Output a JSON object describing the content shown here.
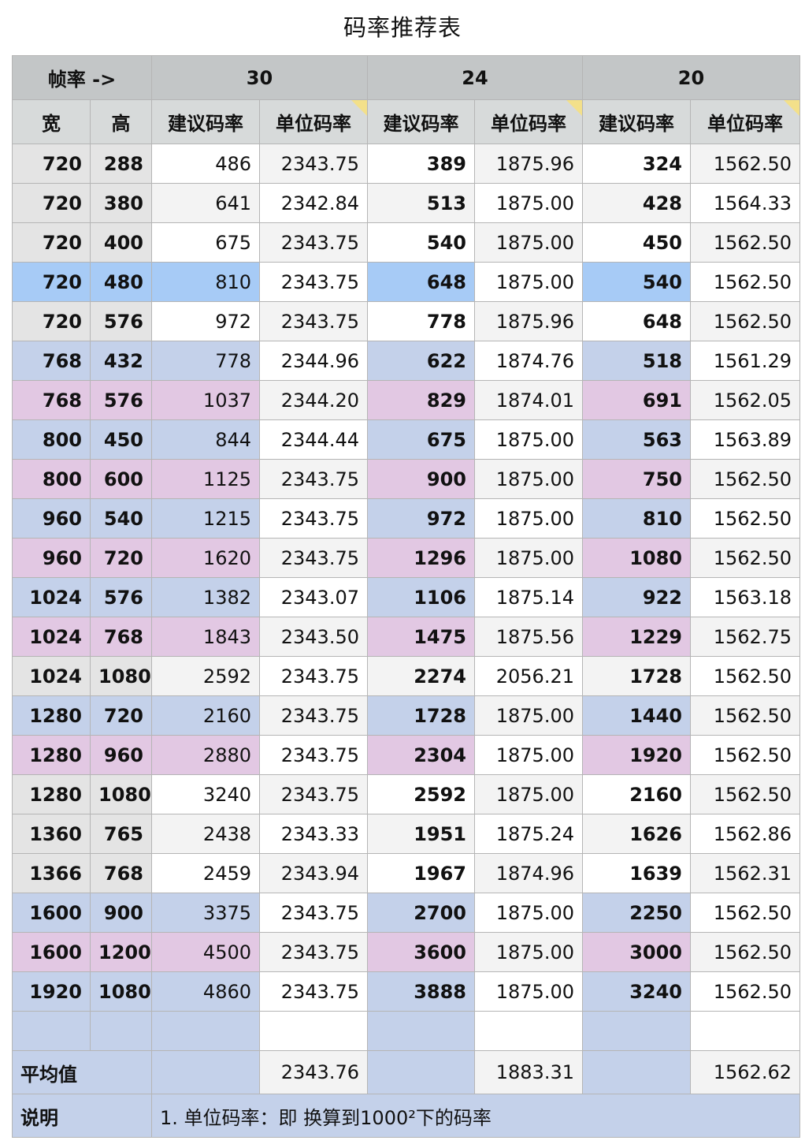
{
  "title": "码率推荐表",
  "header": {
    "framerate_label": "帧率 ->",
    "fps": [
      "30",
      "24",
      "20"
    ],
    "width_label": "宽",
    "height_label": "高",
    "suggested_label": "建议码率",
    "unit_label": "单位码率"
  },
  "rows": [
    {
      "w": "720",
      "h": "288",
      "s30": "486",
      "u30": "2343.75",
      "s24": "389",
      "u24": "1875.96",
      "s20": "324",
      "u20": "1562.50",
      "hl": "gray"
    },
    {
      "w": "720",
      "h": "380",
      "s30": "641",
      "u30": "2342.84",
      "s24": "513",
      "u24": "1875.00",
      "s20": "428",
      "u20": "1564.33",
      "hl": "gray"
    },
    {
      "w": "720",
      "h": "400",
      "s30": "675",
      "u30": "2343.75",
      "s24": "540",
      "u24": "1875.00",
      "s20": "450",
      "u20": "1562.50",
      "hl": "gray"
    },
    {
      "w": "720",
      "h": "480",
      "s30": "810",
      "u30": "2343.75",
      "s24": "648",
      "u24": "1875.00",
      "s20": "540",
      "u20": "1562.50",
      "hl": "blue"
    },
    {
      "w": "720",
      "h": "576",
      "s30": "972",
      "u30": "2343.75",
      "s24": "778",
      "u24": "1875.96",
      "s20": "648",
      "u20": "1562.50",
      "hl": "gray"
    },
    {
      "w": "768",
      "h": "432",
      "s30": "778",
      "u30": "2344.96",
      "s24": "622",
      "u24": "1874.76",
      "s20": "518",
      "u20": "1561.29",
      "hl": "steel"
    },
    {
      "w": "768",
      "h": "576",
      "s30": "1037",
      "u30": "2344.20",
      "s24": "829",
      "u24": "1874.01",
      "s20": "691",
      "u20": "1562.05",
      "hl": "pink"
    },
    {
      "w": "800",
      "h": "450",
      "s30": "844",
      "u30": "2344.44",
      "s24": "675",
      "u24": "1875.00",
      "s20": "563",
      "u20": "1563.89",
      "hl": "steel"
    },
    {
      "w": "800",
      "h": "600",
      "s30": "1125",
      "u30": "2343.75",
      "s24": "900",
      "u24": "1875.00",
      "s20": "750",
      "u20": "1562.50",
      "hl": "pink"
    },
    {
      "w": "960",
      "h": "540",
      "s30": "1215",
      "u30": "2343.75",
      "s24": "972",
      "u24": "1875.00",
      "s20": "810",
      "u20": "1562.50",
      "hl": "steel"
    },
    {
      "w": "960",
      "h": "720",
      "s30": "1620",
      "u30": "2343.75",
      "s24": "1296",
      "u24": "1875.00",
      "s20": "1080",
      "u20": "1562.50",
      "hl": "pink"
    },
    {
      "w": "1024",
      "h": "576",
      "s30": "1382",
      "u30": "2343.07",
      "s24": "1106",
      "u24": "1875.14",
      "s20": "922",
      "u20": "1563.18",
      "hl": "steel"
    },
    {
      "w": "1024",
      "h": "768",
      "s30": "1843",
      "u30": "2343.50",
      "s24": "1475",
      "u24": "1875.56",
      "s20": "1229",
      "u20": "1562.75",
      "hl": "pink"
    },
    {
      "w": "1024",
      "h": "1080",
      "s30": "2592",
      "u30": "2343.75",
      "s24": "2274",
      "u24": "2056.21",
      "s20": "1728",
      "u20": "1562.50",
      "hl": "gray"
    },
    {
      "w": "1280",
      "h": "720",
      "s30": "2160",
      "u30": "2343.75",
      "s24": "1728",
      "u24": "1875.00",
      "s20": "1440",
      "u20": "1562.50",
      "hl": "steel"
    },
    {
      "w": "1280",
      "h": "960",
      "s30": "2880",
      "u30": "2343.75",
      "s24": "2304",
      "u24": "1875.00",
      "s20": "1920",
      "u20": "1562.50",
      "hl": "pink"
    },
    {
      "w": "1280",
      "h": "1080",
      "s30": "3240",
      "u30": "2343.75",
      "s24": "2592",
      "u24": "1875.00",
      "s20": "2160",
      "u20": "1562.50",
      "hl": "gray"
    },
    {
      "w": "1360",
      "h": "765",
      "s30": "2438",
      "u30": "2343.33",
      "s24": "1951",
      "u24": "1875.24",
      "s20": "1626",
      "u20": "1562.86",
      "hl": "gray"
    },
    {
      "w": "1366",
      "h": "768",
      "s30": "2459",
      "u30": "2343.94",
      "s24": "1967",
      "u24": "1874.96",
      "s20": "1639",
      "u20": "1562.31",
      "hl": "gray"
    },
    {
      "w": "1600",
      "h": "900",
      "s30": "3375",
      "u30": "2343.75",
      "s24": "2700",
      "u24": "1875.00",
      "s20": "2250",
      "u20": "1562.50",
      "hl": "steel"
    },
    {
      "w": "1600",
      "h": "1200",
      "s30": "4500",
      "u30": "2343.75",
      "s24": "3600",
      "u24": "1875.00",
      "s20": "3000",
      "u20": "1562.50",
      "hl": "pink"
    },
    {
      "w": "1920",
      "h": "1080",
      "s30": "4860",
      "u30": "2343.75",
      "s24": "3888",
      "u24": "1875.00",
      "s20": "3240",
      "u20": "1562.50",
      "hl": "steel"
    }
  ],
  "average": {
    "label": "平均值",
    "u30": "2343.76",
    "u24": "1883.31",
    "u20": "1562.62"
  },
  "note": {
    "label": "说明",
    "text": "1. 单位码率：即 换算到1000²下的码率"
  },
  "colors": {
    "gray": "#e4e4e4",
    "blue": "#a7cbf6",
    "steel": "#c4d1ea",
    "pink": "#e2c8e3",
    "header": "#c3c6c7"
  }
}
